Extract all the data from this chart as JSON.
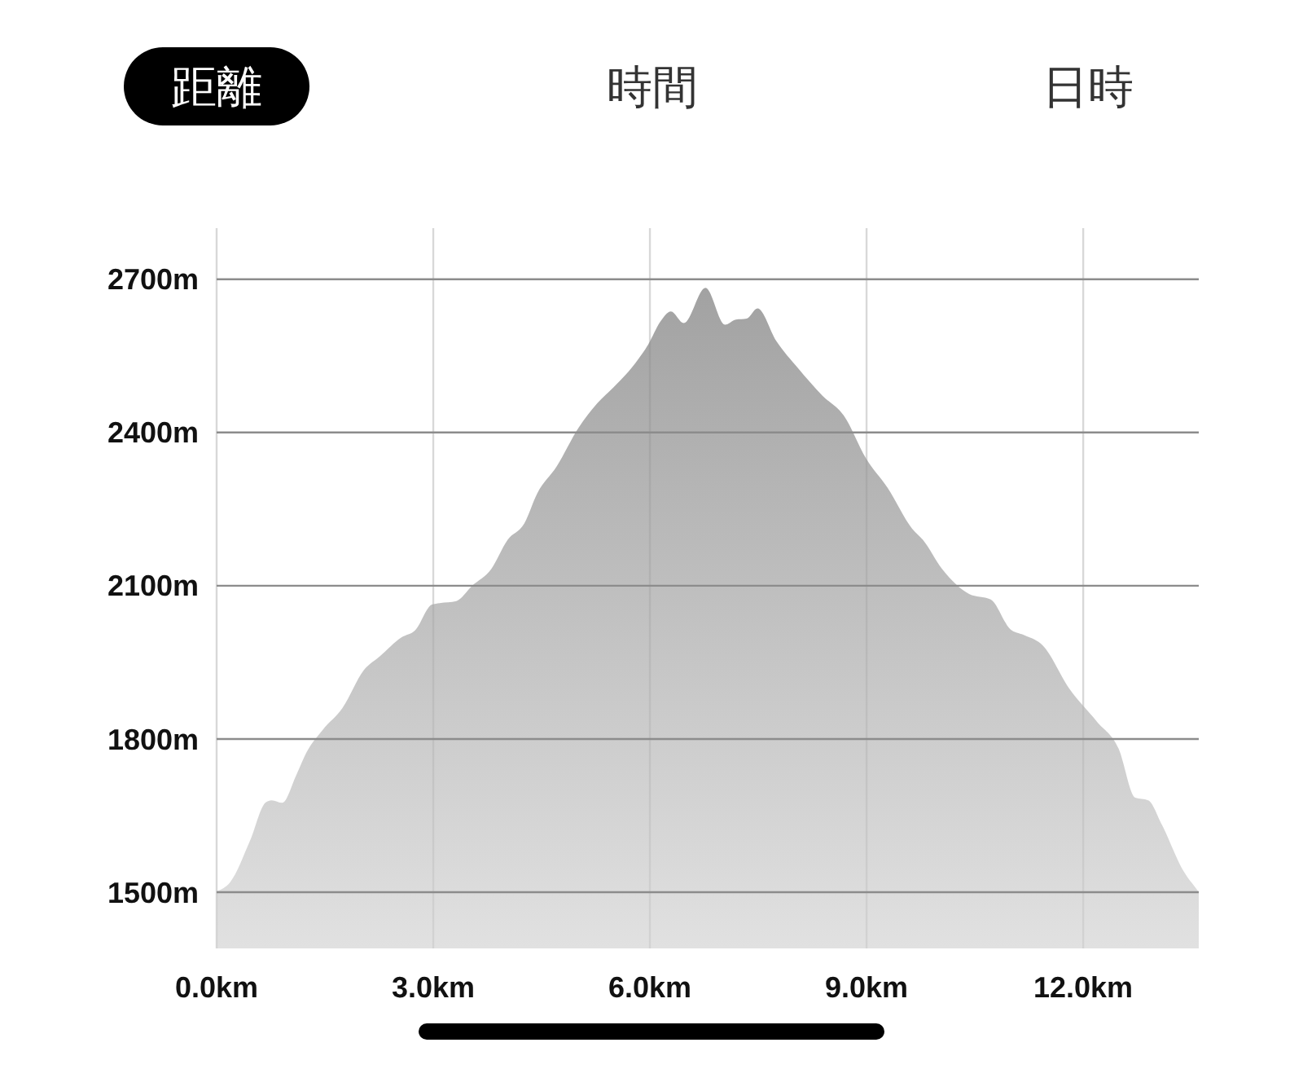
{
  "chart_data": {
    "type": "area",
    "annotations": [
      "距離",
      "時間",
      "日時"
    ],
    "x": [
      0,
      0.19,
      0.46,
      0.68,
      0.76,
      0.91,
      1.1,
      1.25,
      1.47,
      1.74,
      2.04,
      2.26,
      2.56,
      2.75,
      2.98,
      3.09,
      3.32,
      3.54,
      3.8,
      4.03,
      4.26,
      4.44,
      4.71,
      5.01,
      5.27,
      5.5,
      5.8,
      5.98,
      6.14,
      6.29,
      6.47,
      6.77,
      7.04,
      7.19,
      7.34,
      7.49,
      7.75,
      8.05,
      8.39,
      8.69,
      8.99,
      9.29,
      9.63,
      9.78,
      10.05,
      10.42,
      10.72,
      10.99,
      11.17,
      11.44,
      11.81,
      12.19,
      12.49,
      12.72,
      12.9,
      13.09,
      13.39,
      13.58,
      13.6
    ],
    "series": [
      {
        "color": "#9c9c9c",
        "values": [
          1502,
          1520,
          1600,
          1676,
          1680,
          1675,
          1728,
          1775,
          1818,
          1860,
          1935,
          1962,
          1999,
          2013,
          2063,
          2066,
          2070,
          2100,
          2132,
          2190,
          2222,
          2281,
          2334,
          2409,
          2457,
          2489,
          2536,
          2573,
          2616,
          2637,
          2614,
          2683,
          2611,
          2621,
          2623,
          2643,
          2579,
          2526,
          2472,
          2432,
          2350,
          2292,
          2212,
          2190,
          2132,
          2084,
          2073,
          2015,
          2004,
          1983,
          1898,
          1834,
          1781,
          1685,
          1680,
          1632,
          1541,
          1504,
          1500
        ]
      }
    ],
    "xlim": [
      0,
      13.6
    ],
    "ylim": [
      1390,
      2800
    ],
    "xticks": [
      {
        "value": 0,
        "label": "0.0km"
      },
      {
        "value": 3,
        "label": "3.0km"
      },
      {
        "value": 6,
        "label": "6.0km"
      },
      {
        "value": 9,
        "label": "9.0km"
      },
      {
        "value": 12,
        "label": "12.0km"
      }
    ],
    "yticks": [
      {
        "value": 1500,
        "label": "1500m"
      },
      {
        "value": 1800,
        "label": "1800m"
      },
      {
        "value": 2100,
        "label": "2100m"
      },
      {
        "value": 2400,
        "label": "2400m"
      },
      {
        "value": 2700,
        "label": "2700m"
      }
    ],
    "grid": true
  }
}
